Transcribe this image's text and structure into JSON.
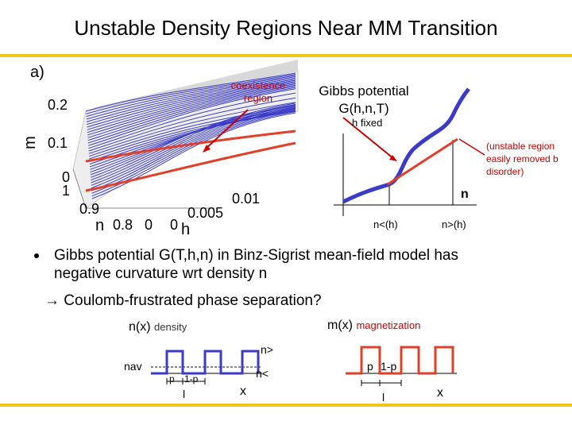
{
  "slide": {
    "title": "Unstable Density Regions Near MM Transition",
    "colors": {
      "accent_rule": "#f0c419",
      "blue": "#3b3bc8",
      "red": "#e0402a",
      "dark_red": "#cc0000"
    }
  },
  "plot3d": {
    "panel_label": "a)",
    "m_ticks": [
      "0.2",
      "0.1",
      "0"
    ],
    "m_axis": "m",
    "n_ticks": [
      "1",
      "0.9",
      "0.8",
      "0"
    ],
    "n_axis": "n",
    "h_ticks": [
      "0.01",
      "0.005",
      "0"
    ],
    "h_axis": "h",
    "coexistence_label_line1": "coexistence",
    "coexistence_label_line2": "region"
  },
  "gibbs": {
    "title_line1": "Gibbs potential",
    "title_line2": "G(h,n,T)",
    "subtitle": "h fixed",
    "note_line1": "(unstable region",
    "note_line2": "easily removed b",
    "note_line3": "disorder)",
    "x_axis": "n",
    "n_lt": "n<(h)",
    "n_gt": "n>(h)"
  },
  "bullets": {
    "b1_line1": "Gibbs potential G(T,h,n) in Binz-Sigrist mean-field model has",
    "b1_line2": "negative curvature wrt density n",
    "b2": "→ Coulomb-frustrated phase separation?"
  },
  "density_plot": {
    "label": "n(x)",
    "label_sub": "density",
    "n_av": "nav",
    "n_gt": "n>",
    "n_lt": "n<",
    "p": "p",
    "one_minus_p": "1-p",
    "l": "l",
    "x_axis": "x"
  },
  "magnet_plot": {
    "label": "m(x)",
    "label_sub": "magnetization",
    "p": "p",
    "one_minus_p": "1-p",
    "l": "l",
    "x_axis": "x"
  }
}
